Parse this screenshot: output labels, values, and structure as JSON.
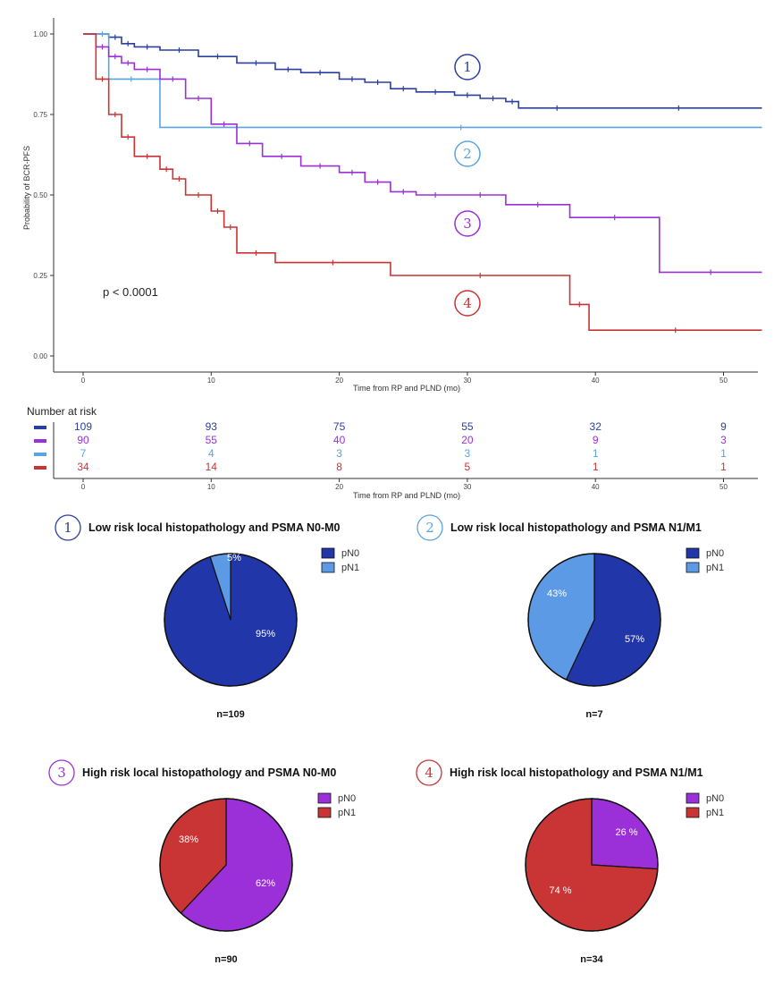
{
  "km": {
    "ylabel": "Probability of BCR-PFS",
    "xlabel": "Time from RP and PLND (mo)",
    "pvalue": "p < 0.0001",
    "yticks": [
      "0.00",
      "0.25",
      "0.50",
      "0.75",
      "1.00"
    ],
    "xticks": [
      "0",
      "10",
      "20",
      "30",
      "40",
      "50"
    ]
  },
  "risk_table": {
    "title": "Number at risk",
    "xlabel": "Time from RP and PLND (mo)",
    "xticks": [
      "0",
      "10",
      "20",
      "30",
      "40",
      "50"
    ]
  },
  "pies": [
    {
      "num": "1",
      "title": "Low risk local histopathology and PSMA N0-M0",
      "n": "n=109",
      "legend": [
        "pN0",
        "pN1"
      ],
      "labels": [
        "95%",
        "5%"
      ]
    },
    {
      "num": "2",
      "title": "Low risk local histopathology and PSMA N1/M1",
      "n": "n=7",
      "legend": [
        "pN0",
        "pN1"
      ],
      "labels": [
        "57%",
        "43%"
      ]
    },
    {
      "num": "3",
      "title": "High risk local histopathology and PSMA N0-M0",
      "n": "n=90",
      "legend": [
        "pN0",
        "pN1"
      ],
      "labels": [
        "62%",
        "38%"
      ]
    },
    {
      "num": "4",
      "title": "High risk local histopathology and PSMA N1/M1",
      "n": "n=34",
      "legend": [
        "pN0",
        "pN1"
      ],
      "labels": [
        "26 %",
        "74 %"
      ]
    }
  ],
  "chart_data": [
    {
      "type": "line",
      "xlabel": "Time from RP and PLND (mo)",
      "ylabel": "Probability of BCR-PFS",
      "xlim": [
        0,
        53
      ],
      "ylim": [
        0,
        1
      ],
      "annotation": "p < 0.0001",
      "series": [
        {
          "name": "1",
          "color": "#2b3f9e",
          "x": [
            0,
            2,
            3,
            4,
            6,
            9,
            12,
            15,
            17,
            20,
            22,
            24,
            26,
            29,
            31,
            33,
            34,
            40,
            53
          ],
          "y": [
            1.0,
            0.99,
            0.97,
            0.96,
            0.95,
            0.93,
            0.91,
            0.89,
            0.88,
            0.86,
            0.85,
            0.83,
            0.82,
            0.81,
            0.8,
            0.79,
            0.77,
            0.77,
            0.77
          ]
        },
        {
          "name": "2",
          "color": "#5aa5df",
          "x": [
            0,
            1,
            2,
            5.5,
            6,
            53
          ],
          "y": [
            1.0,
            1.0,
            0.86,
            0.86,
            0.71,
            0.71
          ]
        },
        {
          "name": "3",
          "color": "#9b30d9",
          "x": [
            0,
            1,
            2,
            3,
            4,
            6,
            8,
            10,
            12,
            14,
            17,
            20,
            22,
            24,
            26,
            29,
            33,
            38,
            45,
            53
          ],
          "y": [
            1.0,
            0.96,
            0.93,
            0.91,
            0.89,
            0.86,
            0.8,
            0.72,
            0.66,
            0.62,
            0.59,
            0.57,
            0.54,
            0.51,
            0.5,
            0.5,
            0.47,
            0.43,
            0.26,
            0.26
          ]
        },
        {
          "name": "4",
          "color": "#c93434",
          "x": [
            0,
            1,
            2,
            3,
            4,
            6,
            7,
            8,
            10,
            11,
            12,
            15,
            24,
            38,
            39.5,
            53
          ],
          "y": [
            1.0,
            0.86,
            0.75,
            0.68,
            0.62,
            0.58,
            0.55,
            0.5,
            0.45,
            0.4,
            0.32,
            0.29,
            0.25,
            0.16,
            0.08,
            0.08
          ]
        }
      ]
    },
    {
      "type": "table",
      "title": "Number at risk",
      "times": [
        0,
        10,
        20,
        30,
        40,
        50
      ],
      "rows": [
        {
          "color": "#2b3f9e",
          "values": [
            109,
            93,
            75,
            55,
            32,
            9
          ]
        },
        {
          "color": "#9b30d9",
          "values": [
            90,
            55,
            40,
            20,
            9,
            3
          ]
        },
        {
          "color": "#5aa5df",
          "values": [
            7,
            4,
            3,
            3,
            1,
            1
          ]
        },
        {
          "color": "#c93434",
          "values": [
            34,
            14,
            8,
            5,
            1,
            1
          ]
        }
      ]
    },
    {
      "type": "pie",
      "title": "Low risk local histopathology and PSMA N0-M0",
      "categories": [
        "pN0",
        "pN1"
      ],
      "values": [
        95,
        5
      ],
      "colors": [
        "#2136a8",
        "#5d9ae6"
      ]
    },
    {
      "type": "pie",
      "title": "Low risk local histopathology and PSMA N1/M1",
      "categories": [
        "pN0",
        "pN1"
      ],
      "values": [
        57,
        43
      ],
      "colors": [
        "#2136a8",
        "#5d9ae6"
      ]
    },
    {
      "type": "pie",
      "title": "High risk local histopathology and PSMA N0-M0",
      "categories": [
        "pN0",
        "pN1"
      ],
      "values": [
        62,
        38
      ],
      "colors": [
        "#9b30d9",
        "#c93434"
      ]
    },
    {
      "type": "pie",
      "title": "High risk local histopathology and PSMA N1/M1",
      "categories": [
        "pN0",
        "pN1"
      ],
      "values": [
        26,
        74
      ],
      "colors": [
        "#9b30d9",
        "#c93434"
      ]
    }
  ]
}
